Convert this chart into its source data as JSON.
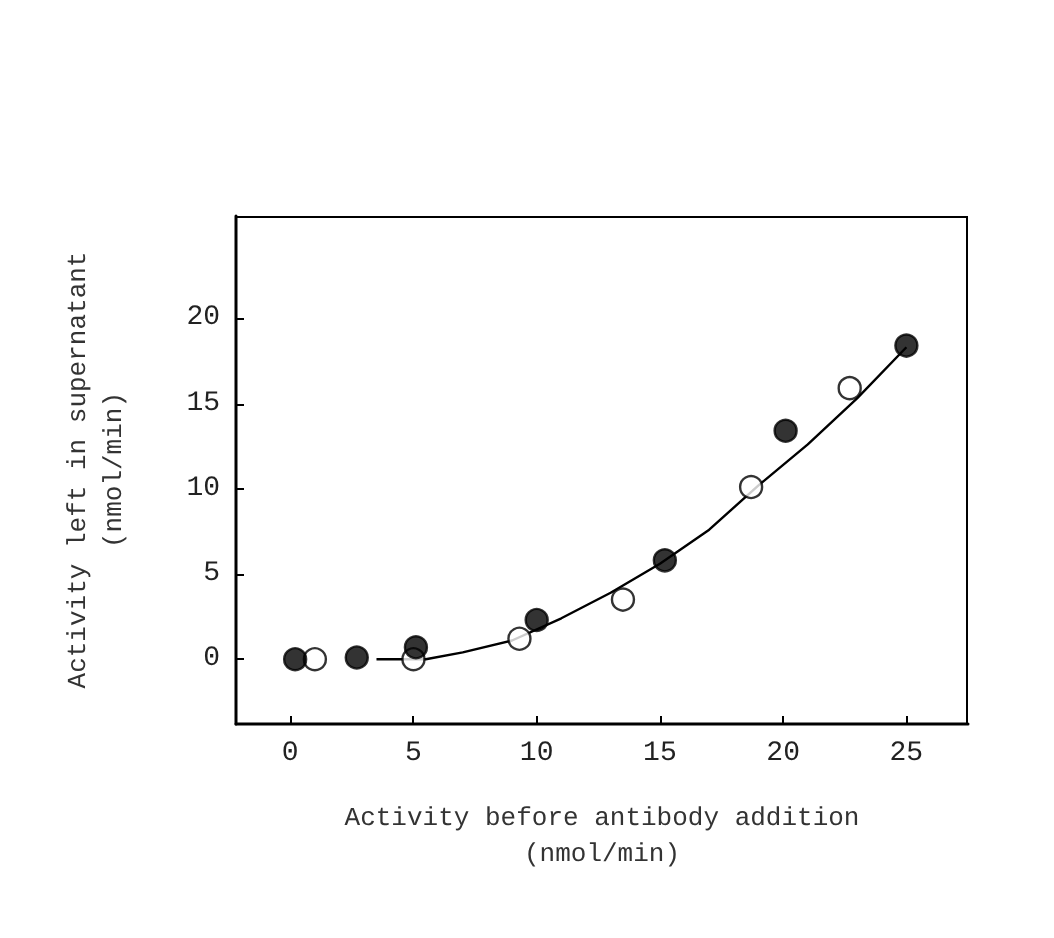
{
  "chart_data": {
    "type": "scatter",
    "xlabel": "Activity before antibody addition\n(nmol/min)",
    "ylabel": "Activity left in supernatant\n(nmol/min)",
    "xlim": [
      -2.2,
      27.5
    ],
    "ylim": [
      -3.8,
      26
    ],
    "xticks": [
      0,
      5,
      10,
      15,
      20,
      25
    ],
    "yticks": [
      0,
      5,
      10,
      15,
      20
    ],
    "grid": false,
    "series": [
      {
        "type": "line",
        "color": "#000000",
        "marker": "none",
        "x": [
          3.5,
          5.5,
          7,
          9,
          11,
          13,
          15,
          17,
          19,
          21,
          23,
          25
        ],
        "values": [
          0,
          0,
          0.4,
          1.1,
          2.4,
          3.9,
          5.6,
          7.6,
          10.2,
          12.6,
          15.3,
          18.3
        ]
      },
      {
        "color": "#ffffff",
        "marker": "circle",
        "x": [
          1,
          5,
          9.3,
          13.5,
          18.7,
          22.7
        ],
        "values": [
          0,
          0,
          1.2,
          3.5,
          10.1,
          15.9
        ]
      },
      {
        "color": "#000000",
        "marker": "circle",
        "x": [
          0.2,
          2.7,
          5.1,
          10,
          15.2,
          20.1,
          25
        ],
        "values": [
          0,
          0.1,
          0.7,
          2.3,
          5.8,
          13.4,
          18.4
        ]
      }
    ]
  }
}
